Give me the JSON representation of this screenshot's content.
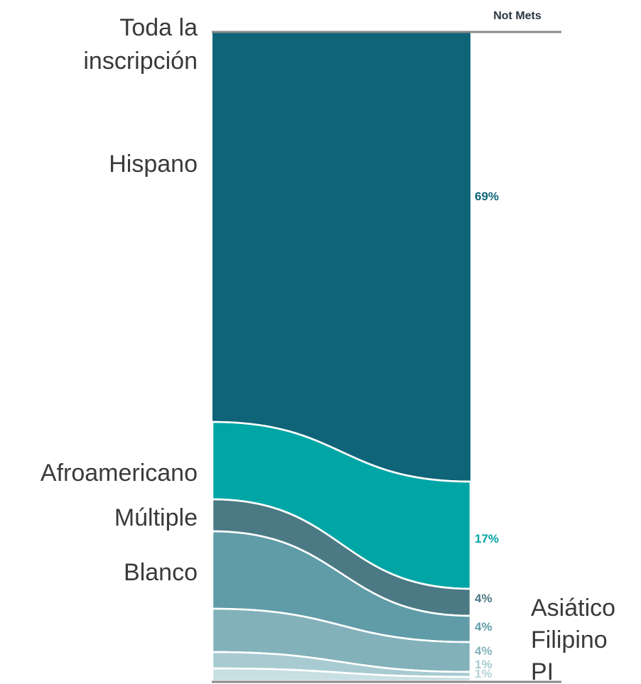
{
  "chart_data": {
    "type": "area",
    "column_header": "Not Mets",
    "left_labels": [
      "Toda la",
      "inscripción",
      "Hispano",
      "Afroamericano",
      "Múltiple",
      "Blanco"
    ],
    "right_labels": [
      "Asiático",
      "Filipino",
      "PI"
    ],
    "series": [
      {
        "color": "#0f6478",
        "label": "69%",
        "value": 69
      },
      {
        "color": "#00a5a5",
        "label": "17%",
        "value": 17
      },
      {
        "color": "#4b7984",
        "label": "4%",
        "value": 4
      },
      {
        "color": "#5f9ca8",
        "label": "4%",
        "value": 4
      },
      {
        "color": "#82b1ba",
        "label": "4%",
        "value": 4
      },
      {
        "color": "#a7cbd1",
        "label": "1%",
        "value": 1
      },
      {
        "color": "#c8dfe3",
        "label": "1%",
        "value": 1
      }
    ]
  }
}
